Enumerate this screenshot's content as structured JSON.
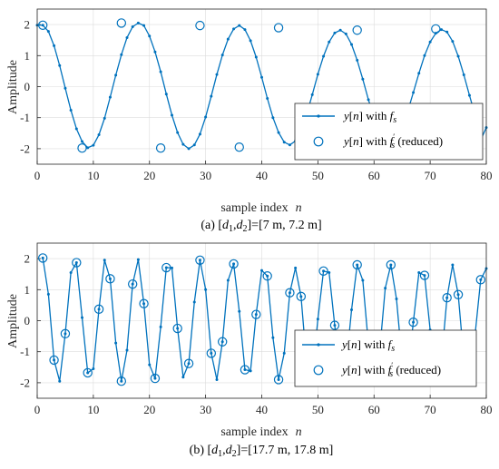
{
  "chart_data": [
    {
      "type": "line",
      "caption": "(a) [d1,d2]=[7 m, 7.2 m]",
      "xlabel": "sample index  n",
      "ylabel": "Amplitude",
      "xlim": [
        0,
        80
      ],
      "ylim": [
        -2.5,
        2.5
      ],
      "xticks": [
        0,
        10,
        20,
        30,
        40,
        50,
        60,
        70,
        80
      ],
      "yticks": [
        -2,
        -1,
        0,
        1,
        2
      ],
      "grid": true,
      "legend_position": "bottom-right",
      "series": [
        {
          "name": "y[n] with f_s",
          "style": "line-dots",
          "color": "#0072BD",
          "x": [
            0,
            1,
            2,
            3,
            4,
            5,
            6,
            7,
            8,
            9,
            10,
            11,
            12,
            13,
            14,
            15,
            16,
            17,
            18,
            19,
            20,
            21,
            22,
            23,
            24,
            25,
            26,
            27,
            28,
            29,
            30,
            31,
            32,
            33,
            34,
            35,
            36,
            37,
            38,
            39,
            40,
            41,
            42,
            43,
            44,
            45,
            46,
            47,
            48,
            49,
            50,
            51,
            52,
            53,
            54,
            55,
            56,
            57,
            58,
            59,
            60,
            61,
            62,
            63,
            64,
            65,
            66,
            67,
            68,
            69,
            70,
            71,
            72,
            73,
            74,
            75,
            76,
            77,
            78,
            79,
            80
          ],
          "y": [
            1.98,
            1.98,
            1.78,
            1.32,
            0.68,
            -0.05,
            -0.76,
            -1.36,
            -1.77,
            -1.97,
            -1.89,
            -1.55,
            -1.02,
            -0.34,
            0.37,
            1.03,
            1.58,
            1.93,
            2.05,
            1.97,
            1.63,
            1.12,
            0.48,
            -0.24,
            -0.92,
            -1.48,
            -1.86,
            -2.0,
            -1.88,
            -1.53,
            -0.98,
            -0.31,
            0.39,
            1.02,
            1.53,
            1.86,
            1.97,
            1.84,
            1.48,
            0.95,
            0.3,
            -0.38,
            -1.0,
            -1.48,
            -1.79,
            -1.88,
            -1.75,
            -1.4,
            -0.89,
            -0.26,
            0.4,
            0.98,
            1.44,
            1.73,
            1.82,
            1.7,
            1.36,
            0.85,
            0.24,
            -0.42,
            -1.0,
            -1.42,
            -1.69,
            -1.77,
            -1.63,
            -1.3,
            -0.8,
            -0.19,
            0.43,
            1.0,
            1.44,
            1.72,
            1.84,
            1.76,
            1.46,
            0.98,
            0.38,
            -0.28,
            -0.92,
            -1.72,
            -1.32
          ]
        },
        {
          "name": "y[n] with f_s' (reduced)",
          "style": "open-circles",
          "color": "#0072BD",
          "x": [
            1,
            8,
            15,
            22,
            29,
            36,
            43,
            50,
            57,
            64,
            71,
            78
          ],
          "y": [
            1.98,
            -1.98,
            2.05,
            -1.98,
            1.97,
            -1.95,
            1.9,
            -1.88,
            1.82,
            -1.8,
            1.86,
            -1.75
          ]
        }
      ]
    },
    {
      "type": "line",
      "caption": "(b) [d1,d2]=[17.7 m, 17.8 m]",
      "xlabel": "sample index  n",
      "ylabel": "Amplitude",
      "xlim": [
        0,
        80
      ],
      "ylim": [
        -2.5,
        2.5
      ],
      "xticks": [
        0,
        10,
        20,
        30,
        40,
        50,
        60,
        70,
        80
      ],
      "yticks": [
        -2,
        -1,
        0,
        1,
        2
      ],
      "grid": true,
      "legend_position": "bottom-right",
      "series": [
        {
          "name": "y[n] with f_s",
          "style": "line-dots",
          "color": "#0072BD",
          "x": [
            1,
            2,
            3,
            4,
            5,
            6,
            7,
            8,
            9,
            10,
            11,
            12,
            13,
            14,
            15,
            16,
            17,
            18,
            19,
            20,
            21,
            22,
            23,
            24,
            25,
            26,
            27,
            28,
            29,
            30,
            31,
            32,
            33,
            34,
            35,
            36,
            37,
            38,
            39,
            40,
            41,
            42,
            43,
            44,
            45,
            46,
            47,
            48,
            49,
            50,
            51,
            52,
            53,
            54,
            55,
            56,
            57,
            58,
            59,
            60,
            61,
            62,
            63,
            64,
            65,
            66,
            67,
            68,
            69,
            70,
            71,
            72,
            73,
            74,
            75,
            76,
            77,
            78,
            79,
            80
          ],
          "y": [
            2.02,
            0.85,
            -1.27,
            -1.95,
            -0.42,
            1.55,
            1.87,
            0.1,
            -1.68,
            -1.55,
            0.37,
            1.95,
            1.35,
            -0.72,
            -1.95,
            -0.95,
            1.18,
            1.97,
            0.55,
            -1.42,
            -1.86,
            -0.2,
            1.71,
            1.7,
            -0.25,
            -1.82,
            -1.38,
            0.6,
            1.95,
            1.0,
            -1.05,
            -1.9,
            -0.68,
            1.3,
            1.83,
            0.3,
            -1.58,
            -1.62,
            0.2,
            1.62,
            1.44,
            -0.55,
            -1.9,
            -1.05,
            0.9,
            1.7,
            0.78,
            -1.4,
            -1.75,
            0.05,
            1.6,
            1.55,
            -0.15,
            -1.65,
            -1.5,
            0.35,
            1.8,
            1.3,
            -0.75,
            -1.85,
            -1.0,
            1.05,
            1.8,
            0.7,
            -1.3,
            -1.72,
            -0.05,
            1.55,
            1.46,
            -0.3,
            -1.68,
            -1.3,
            0.74,
            1.8,
            0.84,
            -1.25,
            -1.65,
            -0.45,
            1.32,
            1.68
          ]
        },
        {
          "name": "y[n] with f_s' (reduced)",
          "style": "open-circles",
          "color": "#0072BD",
          "x": [
            1,
            3,
            5,
            7,
            9,
            11,
            13,
            15,
            17,
            19,
            21,
            23,
            25,
            27,
            29,
            31,
            33,
            35,
            37,
            39,
            41,
            43,
            45,
            47,
            49,
            51,
            53,
            55,
            57,
            59,
            61,
            63,
            65,
            67,
            69,
            71,
            73,
            75,
            77,
            79
          ],
          "y": [
            2.02,
            -1.27,
            -0.42,
            1.87,
            -1.68,
            0.37,
            1.35,
            -1.95,
            1.18,
            0.55,
            -1.86,
            1.71,
            -0.25,
            -1.38,
            1.95,
            -1.05,
            -0.68,
            1.83,
            -1.58,
            0.2,
            1.44,
            -1.9,
            0.9,
            0.78,
            -1.75,
            1.6,
            -0.15,
            -1.5,
            1.8,
            -0.75,
            -1.0,
            1.8,
            -1.3,
            -0.05,
            1.46,
            -1.68,
            0.74,
            0.84,
            -1.65,
            1.32
          ]
        }
      ]
    }
  ],
  "legend": {
    "entry1": {
      "prefix": "y",
      "bracket_open": "[",
      "var": "n",
      "bracket_close": "]",
      "with": " with ",
      "f": "f",
      "sub": "s"
    },
    "entry2": {
      "prefix": "y",
      "bracket_open": "[",
      "var": "n",
      "bracket_close": "]",
      "with": " with ",
      "f": "f",
      "prime": "′",
      "sub": "s",
      "suffix": " (reduced)"
    }
  },
  "captions": {
    "a": {
      "prefix": "(a) [",
      "d1": "d",
      "d1sub": "1",
      "comma": ",",
      "d2": "d",
      "d2sub": "2",
      "rest": "]=[7 m, 7.2 m]"
    },
    "b": {
      "prefix": "(b) [",
      "d1": "d",
      "d1sub": "1",
      "comma": ",",
      "d2": "d",
      "d2sub": "2",
      "rest": "]=[17.7 m, 17.8 m]"
    }
  },
  "axis_text": {
    "xlabel_main": "sample index",
    "xlabel_var": "n",
    "ylabel": "Amplitude"
  }
}
